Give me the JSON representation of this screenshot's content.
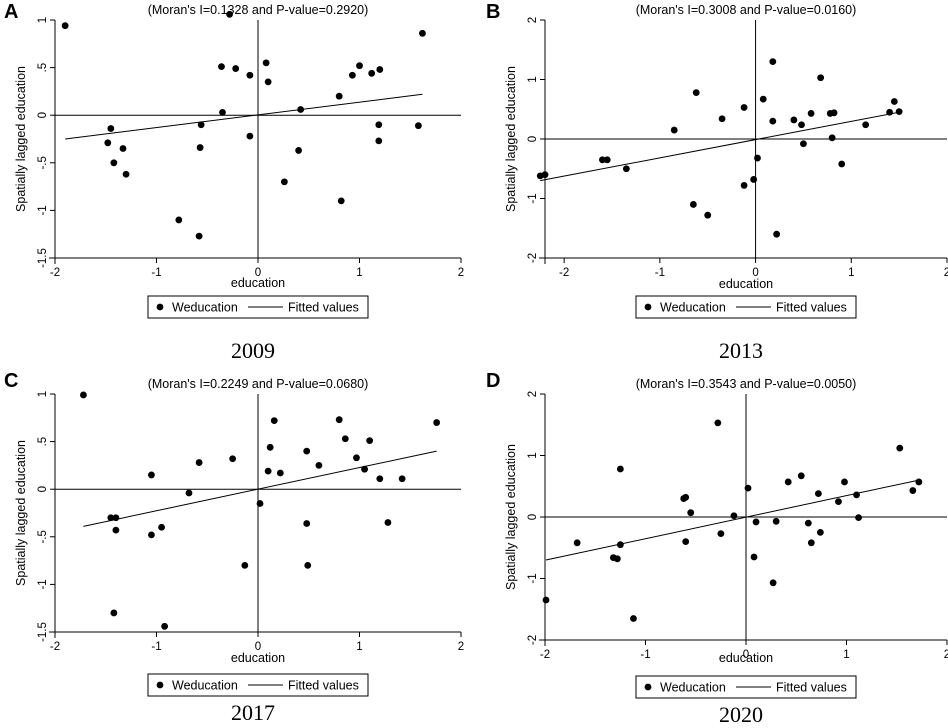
{
  "chart_data": [
    {
      "type": "scatter",
      "panel": "A",
      "title": "(Moran's I=0.1328 and P-value=0.2920)",
      "xlabel": "education",
      "ylabel": "Spatially lagged education",
      "caption": "2009",
      "xlim": [
        -2.0,
        2.0
      ],
      "ylim": [
        -1.5,
        1.0
      ],
      "xticks": [
        {
          "v": -2,
          "label": "-2"
        },
        {
          "v": -1,
          "label": "-1"
        },
        {
          "v": 0,
          "label": "0"
        },
        {
          "v": 1,
          "label": "1"
        },
        {
          "v": 2,
          "label": "2"
        }
      ],
      "yticks": [
        {
          "v": -1.5,
          "label": "-1.5"
        },
        {
          "v": -1,
          "label": "-1"
        },
        {
          "v": -0.5,
          "label": "-.5"
        },
        {
          "v": 0,
          "label": "0"
        },
        {
          "v": 0.5,
          "label": ".5"
        },
        {
          "v": 1,
          "label": "1"
        }
      ],
      "legend": [
        "Weducation",
        "Fitted values"
      ],
      "fit": {
        "x": [
          -1.9,
          1.62
        ],
        "y": [
          -0.25,
          0.22
        ]
      },
      "points": [
        [
          -1.9,
          0.94
        ],
        [
          -1.45,
          -0.14
        ],
        [
          -1.48,
          -0.29
        ],
        [
          -1.42,
          -0.5
        ],
        [
          -1.33,
          -0.35
        ],
        [
          -1.3,
          -0.62
        ],
        [
          -0.78,
          -1.1
        ],
        [
          -0.58,
          -1.27
        ],
        [
          -0.56,
          -0.1
        ],
        [
          -0.57,
          -0.34
        ],
        [
          -0.36,
          0.51
        ],
        [
          -0.35,
          0.03
        ],
        [
          -0.28,
          1.06
        ],
        [
          -0.22,
          0.49
        ],
        [
          -0.08,
          0.42
        ],
        [
          -0.08,
          -0.22
        ],
        [
          0.08,
          0.55
        ],
        [
          0.1,
          0.35
        ],
        [
          0.26,
          -0.7
        ],
        [
          0.4,
          -0.37
        ],
        [
          0.42,
          0.06
        ],
        [
          0.8,
          0.2
        ],
        [
          0.82,
          -0.9
        ],
        [
          0.93,
          0.42
        ],
        [
          1.0,
          0.52
        ],
        [
          1.12,
          0.44
        ],
        [
          1.2,
          0.48
        ],
        [
          1.19,
          -0.1
        ],
        [
          1.19,
          -0.27
        ],
        [
          1.58,
          -0.11
        ],
        [
          1.62,
          0.86
        ]
      ]
    },
    {
      "type": "scatter",
      "panel": "B",
      "title": "(Moran's I=0.3008 and P-value=0.0160)",
      "xlabel": "education",
      "ylabel": "Spatially lagged education",
      "caption": "2013",
      "xlim": [
        -2.2,
        2.0
      ],
      "ylim": [
        -2.0,
        2.0
      ],
      "xticks": [
        {
          "v": -2,
          "label": "-2"
        },
        {
          "v": -1,
          "label": "-1"
        },
        {
          "v": 0,
          "label": "0"
        },
        {
          "v": 1,
          "label": "1"
        },
        {
          "v": 2,
          "label": "2"
        }
      ],
      "yticks": [
        {
          "v": -2,
          "label": "-2"
        },
        {
          "v": -1,
          "label": "-1"
        },
        {
          "v": 0,
          "label": "0"
        },
        {
          "v": 1,
          "label": "1"
        },
        {
          "v": 2,
          "label": "2"
        }
      ],
      "legend": [
        "Weducation",
        "Fitted values"
      ],
      "fit": {
        "x": [
          -2.25,
          1.5
        ],
        "y": [
          -0.7,
          0.45
        ]
      },
      "points": [
        [
          -2.25,
          -0.62
        ],
        [
          -2.2,
          -0.6
        ],
        [
          -1.6,
          -0.35
        ],
        [
          -1.55,
          -0.35
        ],
        [
          -1.35,
          -0.5
        ],
        [
          -0.85,
          0.15
        ],
        [
          -0.65,
          -1.1
        ],
        [
          -0.62,
          0.78
        ],
        [
          -0.5,
          -1.28
        ],
        [
          -0.35,
          0.34
        ],
        [
          -0.12,
          0.53
        ],
        [
          -0.12,
          -0.78
        ],
        [
          -0.02,
          -0.68
        ],
        [
          0.02,
          -0.32
        ],
        [
          0.08,
          0.67
        ],
        [
          0.18,
          0.3
        ],
        [
          0.18,
          1.3
        ],
        [
          0.22,
          -1.6
        ],
        [
          0.4,
          0.32
        ],
        [
          0.48,
          0.24
        ],
        [
          0.5,
          -0.08
        ],
        [
          0.58,
          0.43
        ],
        [
          0.68,
          1.03
        ],
        [
          0.78,
          0.43
        ],
        [
          0.8,
          0.02
        ],
        [
          0.82,
          0.44
        ],
        [
          0.9,
          -0.42
        ],
        [
          1.15,
          0.24
        ],
        [
          1.4,
          0.45
        ],
        [
          1.45,
          0.63
        ],
        [
          1.5,
          0.46
        ]
      ]
    },
    {
      "type": "scatter",
      "panel": "C",
      "title": "(Moran's I=0.2249 and P-value=0.0680)",
      "xlabel": "education",
      "ylabel": "Spatially lagged education",
      "caption": "2017",
      "xlim": [
        -2.0,
        2.0
      ],
      "ylim": [
        -1.5,
        1.0
      ],
      "xticks": [
        {
          "v": -2,
          "label": "-2"
        },
        {
          "v": -1,
          "label": "-1"
        },
        {
          "v": 0,
          "label": "0"
        },
        {
          "v": 1,
          "label": "1"
        },
        {
          "v": 2,
          "label": "2"
        }
      ],
      "yticks": [
        {
          "v": -1.5,
          "label": "-1.5"
        },
        {
          "v": -1,
          "label": "-1"
        },
        {
          "v": -0.5,
          "label": "-.5"
        },
        {
          "v": 0,
          "label": "0"
        },
        {
          "v": 0.5,
          "label": ".5"
        },
        {
          "v": 1,
          "label": "1"
        }
      ],
      "legend": [
        "Weducation",
        "Fitted values"
      ],
      "fit": {
        "x": [
          -1.72,
          1.76
        ],
        "y": [
          -0.39,
          0.4
        ]
      },
      "points": [
        [
          -1.72,
          0.99
        ],
        [
          -1.45,
          -0.3
        ],
        [
          -1.4,
          -0.3
        ],
        [
          -1.4,
          -0.43
        ],
        [
          -1.42,
          -1.3
        ],
        [
          -1.05,
          0.15
        ],
        [
          -1.05,
          -0.48
        ],
        [
          -0.95,
          -0.4
        ],
        [
          -0.92,
          -1.44
        ],
        [
          -0.68,
          -0.04
        ],
        [
          -0.58,
          0.28
        ],
        [
          -0.25,
          0.32
        ],
        [
          -0.13,
          -0.8
        ],
        [
          0.02,
          -0.15
        ],
        [
          0.1,
          0.19
        ],
        [
          0.12,
          0.44
        ],
        [
          0.16,
          0.72
        ],
        [
          0.22,
          0.17
        ],
        [
          0.48,
          0.4
        ],
        [
          0.48,
          -0.36
        ],
        [
          0.49,
          -0.8
        ],
        [
          0.6,
          0.25
        ],
        [
          0.8,
          0.73
        ],
        [
          0.86,
          0.53
        ],
        [
          0.97,
          0.33
        ],
        [
          1.05,
          0.21
        ],
        [
          1.1,
          0.51
        ],
        [
          1.2,
          0.11
        ],
        [
          1.28,
          -0.35
        ],
        [
          1.42,
          0.11
        ],
        [
          1.76,
          0.7
        ]
      ]
    },
    {
      "type": "scatter",
      "panel": "D",
      "title": "(Moran's I=0.3543 and P-value=0.0050)",
      "xlabel": "education",
      "ylabel": "Spatially lagged education",
      "caption": "2020",
      "xlim": [
        -2.0,
        2.0
      ],
      "ylim": [
        -2.0,
        2.0
      ],
      "xticks": [
        {
          "v": -2,
          "label": "-2"
        },
        {
          "v": -1,
          "label": "-1"
        },
        {
          "v": 0,
          "label": "0"
        },
        {
          "v": 1,
          "label": "1"
        },
        {
          "v": 2,
          "label": "2"
        }
      ],
      "yticks": [
        {
          "v": -2,
          "label": "-2"
        },
        {
          "v": -1,
          "label": "-1"
        },
        {
          "v": 0,
          "label": "0"
        },
        {
          "v": 1,
          "label": "1"
        },
        {
          "v": 2,
          "label": "2"
        }
      ],
      "legend": [
        "Weducation",
        "Fitted values"
      ],
      "fit": {
        "x": [
          -1.99,
          1.72
        ],
        "y": [
          -0.7,
          0.6
        ]
      },
      "points": [
        [
          -1.99,
          -1.35
        ],
        [
          -1.68,
          -0.42
        ],
        [
          -1.32,
          -0.66
        ],
        [
          -1.28,
          -0.68
        ],
        [
          -1.25,
          0.78
        ],
        [
          -1.25,
          -0.45
        ],
        [
          -1.12,
          -1.65
        ],
        [
          -0.62,
          0.3
        ],
        [
          -0.6,
          0.32
        ],
        [
          -0.6,
          -0.4
        ],
        [
          -0.55,
          0.07
        ],
        [
          -0.28,
          1.53
        ],
        [
          -0.25,
          -0.27
        ],
        [
          -0.12,
          0.02
        ],
        [
          0.02,
          0.47
        ],
        [
          0.1,
          -0.08
        ],
        [
          0.08,
          -0.65
        ],
        [
          0.27,
          -1.07
        ],
        [
          0.3,
          -0.07
        ],
        [
          0.42,
          0.57
        ],
        [
          0.55,
          0.67
        ],
        [
          0.62,
          -0.1
        ],
        [
          0.65,
          -0.42
        ],
        [
          0.72,
          0.38
        ],
        [
          0.74,
          -0.25
        ],
        [
          0.92,
          0.25
        ],
        [
          0.98,
          0.57
        ],
        [
          1.1,
          0.36
        ],
        [
          1.12,
          -0.01
        ],
        [
          1.53,
          1.12
        ],
        [
          1.66,
          0.43
        ],
        [
          1.72,
          0.57
        ]
      ]
    }
  ]
}
